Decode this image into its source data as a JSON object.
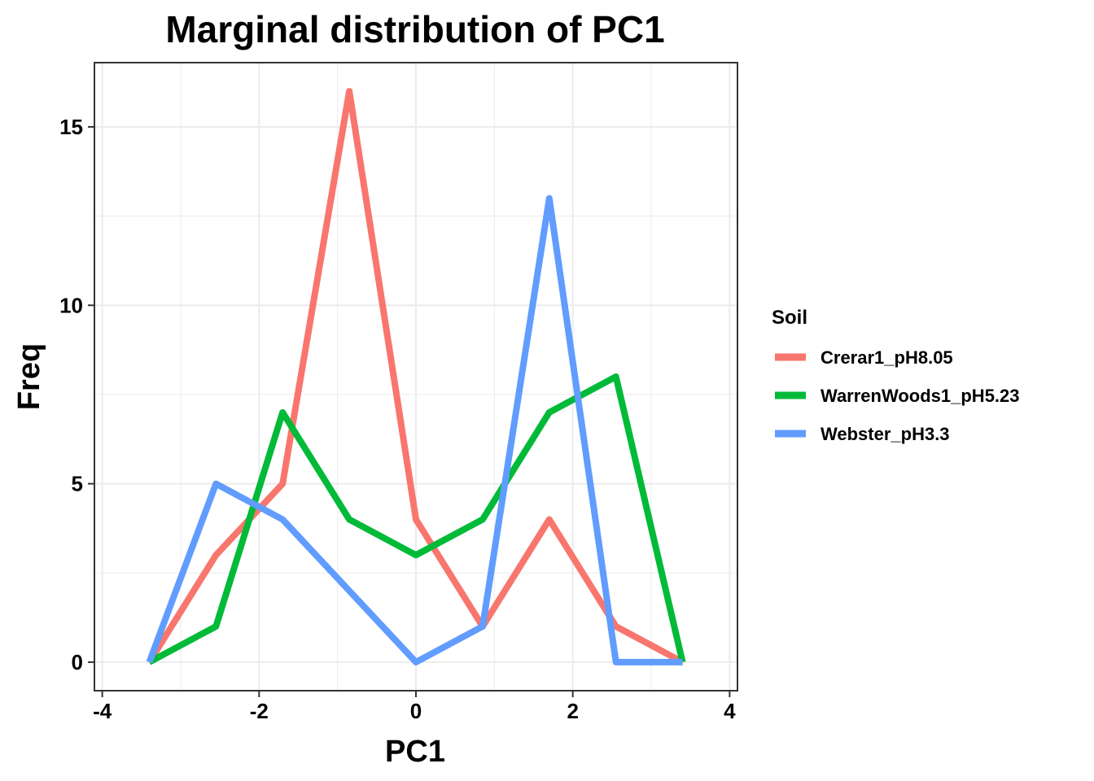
{
  "chart_data": {
    "type": "line",
    "title": "Marginal distribution of PC1",
    "xlabel": "PC1",
    "ylabel": "Freq",
    "xlim": [
      -4.1,
      4.1
    ],
    "ylim": [
      -0.8,
      16.8
    ],
    "x_ticks": [
      -4,
      -2,
      0,
      2,
      4
    ],
    "x_tick_labels": [
      "-4",
      "-2",
      "0",
      "2",
      "4"
    ],
    "y_ticks": [
      0,
      5,
      10,
      15
    ],
    "y_tick_labels": [
      "0",
      "5",
      "10",
      "15"
    ],
    "grid": true,
    "legend": {
      "title": "Soil",
      "placement": "right"
    },
    "x": [
      -3.4,
      -2.55,
      -1.7,
      -0.85,
      0,
      0.85,
      1.7,
      2.55,
      3.4
    ],
    "series": [
      {
        "name": "Crerar1_pH8.05",
        "color": "#F8766D",
        "values": [
          0,
          3,
          5,
          16,
          4,
          1,
          4,
          1,
          0
        ]
      },
      {
        "name": "WarrenWoods1_pH5.23",
        "color": "#00BA38",
        "values": [
          0,
          1,
          7,
          4,
          3,
          4,
          7,
          8,
          0
        ]
      },
      {
        "name": "Webster_pH3.3",
        "color": "#619CFF",
        "values": [
          0,
          5,
          4,
          2,
          0,
          1,
          13,
          0,
          0
        ]
      }
    ]
  }
}
